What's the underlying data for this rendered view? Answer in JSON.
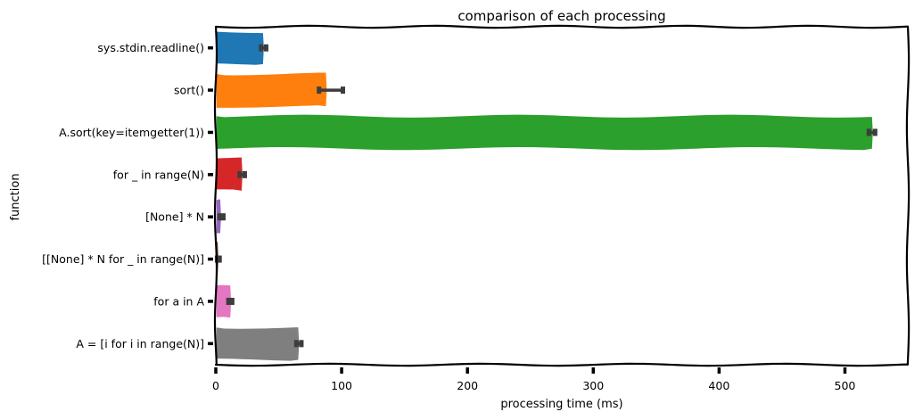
{
  "chart_data": {
    "type": "bar",
    "orientation": "horizontal",
    "title": "comparison of each processing",
    "xlabel": "processing time (ms)",
    "ylabel": "function",
    "xlim": [
      0,
      550
    ],
    "xticks": [
      0,
      100,
      200,
      300,
      400,
      500
    ],
    "categories": [
      "sys.stdin.readline()",
      "sort()",
      "A.sort(key=itemgetter(1))",
      "for _ in range(N)",
      "[None] * N",
      "[[None] * N for _ in range(N)]",
      "for a in A",
      "A = [i for i in range(N)]"
    ],
    "values": [
      38,
      88,
      522,
      21,
      4,
      2,
      12,
      66
    ],
    "error_low": [
      36,
      82,
      519,
      19,
      3,
      1,
      10,
      64
    ],
    "error_high": [
      40,
      101,
      524,
      23,
      6,
      3,
      13,
      68
    ],
    "colors": [
      "#1f77b4",
      "#ff7f0e",
      "#2ca02c",
      "#d62728",
      "#9467bd",
      "#8c564b",
      "#e377c2",
      "#7f7f7f"
    ],
    "grid": false,
    "legend": "none"
  }
}
